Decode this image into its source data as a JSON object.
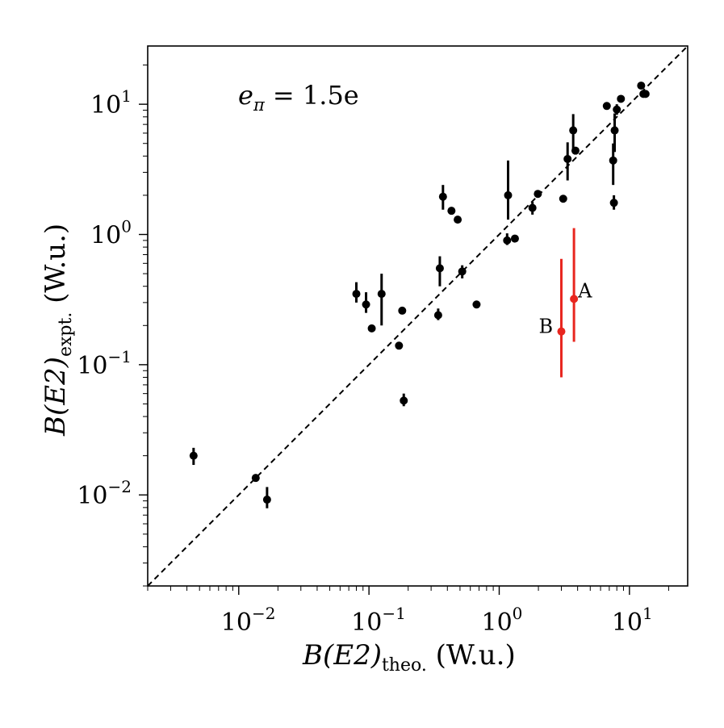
{
  "chart_data": {
    "type": "scatter",
    "title": "",
    "annotation": {
      "main": "e",
      "sub": "π",
      "rest": " = 1.5e"
    },
    "xlabel": {
      "main": "B(E2)",
      "sub": "theo.",
      "unit": " (W.u.)"
    },
    "ylabel": {
      "main": "B(E2)",
      "sub": "expt.",
      "unit": " (W.u.)"
    },
    "xscale": "log",
    "yscale": "log",
    "xlim": [
      0.002,
      28
    ],
    "ylim": [
      0.002,
      28
    ],
    "x_ticks": [
      {
        "value": 0.01,
        "base": "10",
        "exp": "−2"
      },
      {
        "value": 0.1,
        "base": "10",
        "exp": "−1"
      },
      {
        "value": 1,
        "base": "10",
        "exp": "0"
      },
      {
        "value": 10,
        "base": "10",
        "exp": "1"
      }
    ],
    "y_ticks": [
      {
        "value": 0.01,
        "base": "10",
        "exp": "−2"
      },
      {
        "value": 0.1,
        "base": "10",
        "exp": "−1"
      },
      {
        "value": 1,
        "base": "10",
        "exp": "0"
      },
      {
        "value": 10,
        "base": "10",
        "exp": "1"
      }
    ],
    "reference_line": {
      "label": "y = x",
      "style": "dashed"
    },
    "series": [
      {
        "name": "data",
        "color": "#000000",
        "points": [
          {
            "x": 0.0045,
            "y": 0.02,
            "ylo": 0.017,
            "yhi": 0.023
          },
          {
            "x": 0.0135,
            "y": 0.0135
          },
          {
            "x": 0.0165,
            "y": 0.0092,
            "ylo": 0.0079,
            "yhi": 0.0115
          },
          {
            "x": 0.08,
            "y": 0.35,
            "ylo": 0.3,
            "yhi": 0.43
          },
          {
            "x": 0.095,
            "y": 0.29,
            "ylo": 0.25,
            "yhi": 0.36
          },
          {
            "x": 0.105,
            "y": 0.19
          },
          {
            "x": 0.125,
            "y": 0.35,
            "ylo": 0.2,
            "yhi": 0.5
          },
          {
            "x": 0.17,
            "y": 0.14
          },
          {
            "x": 0.18,
            "y": 0.26
          },
          {
            "x": 0.185,
            "y": 0.053,
            "ylo": 0.048,
            "yhi": 0.06
          },
          {
            "x": 0.34,
            "y": 0.24,
            "ylo": 0.22,
            "yhi": 0.27
          },
          {
            "x": 0.35,
            "y": 0.55,
            "ylo": 0.4,
            "yhi": 0.68
          },
          {
            "x": 0.37,
            "y": 1.95,
            "ylo": 1.55,
            "yhi": 2.4
          },
          {
            "x": 0.43,
            "y": 1.52
          },
          {
            "x": 0.48,
            "y": 1.3
          },
          {
            "x": 0.52,
            "y": 0.52,
            "ylo": 0.46,
            "yhi": 0.58
          },
          {
            "x": 0.67,
            "y": 0.29
          },
          {
            "x": 1.15,
            "y": 0.9,
            "ylo": 0.83,
            "yhi": 1.02
          },
          {
            "x": 1.17,
            "y": 2.0,
            "ylo": 1.3,
            "yhi": 3.7
          },
          {
            "x": 1.32,
            "y": 0.93
          },
          {
            "x": 1.8,
            "y": 1.6,
            "ylo": 1.42,
            "yhi": 1.78
          },
          {
            "x": 1.98,
            "y": 2.05
          },
          {
            "x": 3.1,
            "y": 1.88
          },
          {
            "x": 3.35,
            "y": 3.8,
            "ylo": 2.6,
            "yhi": 5.1
          },
          {
            "x": 3.7,
            "y": 6.3,
            "ylo": 4.3,
            "yhi": 8.4
          },
          {
            "x": 3.85,
            "y": 4.4
          },
          {
            "x": 6.7,
            "y": 9.7
          },
          {
            "x": 7.5,
            "y": 3.7,
            "ylo": 2.4,
            "yhi": 5.0
          },
          {
            "x": 7.6,
            "y": 1.75,
            "ylo": 1.55,
            "yhi": 2.0
          },
          {
            "x": 7.7,
            "y": 6.3,
            "ylo": 4.3,
            "yhi": 8.5
          },
          {
            "x": 8.0,
            "y": 9.1,
            "ylo": 8.3,
            "yhi": 10.0
          },
          {
            "x": 8.6,
            "y": 11.0
          },
          {
            "x": 12.3,
            "y": 13.9
          },
          {
            "x": 12.8,
            "y": 12.0
          },
          {
            "x": 13.3,
            "y": 12.0
          }
        ]
      },
      {
        "name": "highlighted",
        "color": "#e8261f",
        "points": [
          {
            "label": "A",
            "x": 3.75,
            "y": 0.32,
            "ylo": 0.15,
            "yhi": 1.12
          },
          {
            "label": "B",
            "x": 3.0,
            "y": 0.18,
            "ylo": 0.08,
            "yhi": 0.65
          }
        ]
      }
    ]
  }
}
